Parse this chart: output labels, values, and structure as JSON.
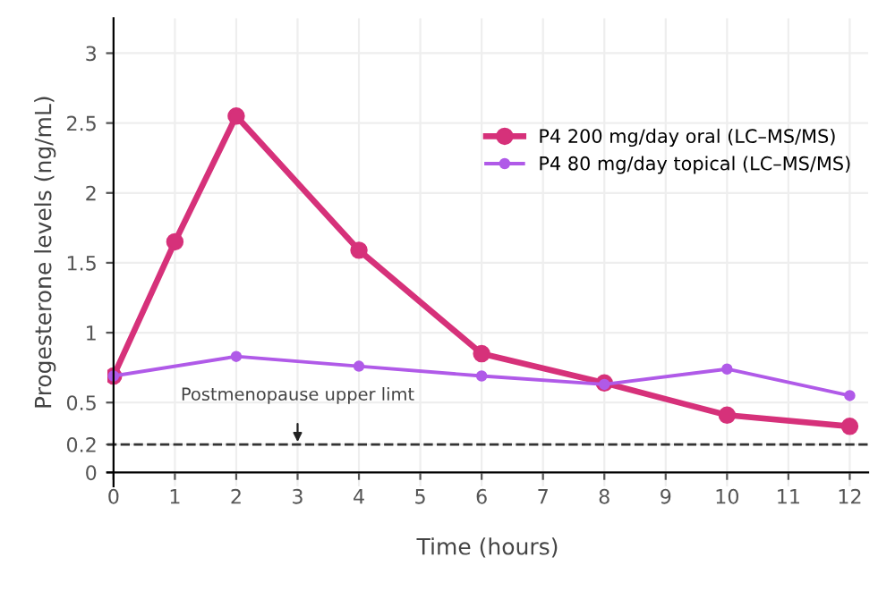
{
  "chart_data": {
    "type": "line",
    "xlabel": "Time (hours)",
    "ylabel": "Progesterone levels (ng/mL)",
    "x": [
      0,
      2,
      4,
      6,
      8,
      10,
      12
    ],
    "series": [
      {
        "name": "P4 200 mg/day oral (LC–MS/MS)",
        "color": "#d6317a",
        "x": [
          0,
          1,
          2,
          4,
          6,
          8,
          10,
          12
        ],
        "values": [
          0.69,
          1.65,
          2.55,
          1.59,
          0.85,
          0.64,
          0.41,
          0.33
        ]
      },
      {
        "name": "P4 80 mg/day topical (LC–MS/MS)",
        "color": "#b05ae8",
        "values": [
          0.69,
          0.83,
          0.76,
          0.69,
          0.63,
          0.74,
          0.55
        ]
      }
    ],
    "xlim": [
      -0.1,
      12.3
    ],
    "xticks": [
      0,
      1,
      2,
      3,
      4,
      5,
      6,
      7,
      8,
      9,
      10,
      11,
      12
    ],
    "ylim": [
      -0.1,
      3.25
    ],
    "yticks": [
      0,
      0.2,
      0.5,
      1,
      1.5,
      2,
      2.5,
      3
    ],
    "ref_lines": [
      {
        "axis": "y",
        "value": 0.2,
        "label": "Postmenopause upper limt",
        "color": "#333333",
        "line_style": "dashed"
      }
    ],
    "grid": true,
    "legend": "top right",
    "marker": "circle",
    "line_style": "solid"
  }
}
